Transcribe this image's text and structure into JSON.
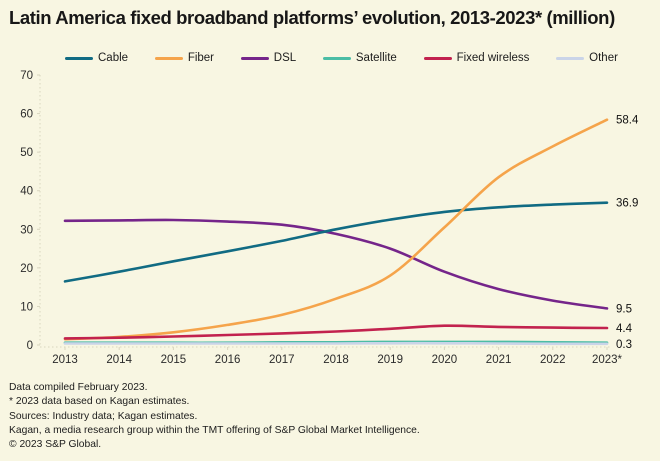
{
  "title": "Latin America fixed broadband platforms’ evolution, 2013-2023* (million)",
  "colors": {
    "background": "#f8f6e2",
    "text": "#1a1a1a",
    "axis": "#d8d5bf",
    "tick_label": "#2b2b2b",
    "end_label": "#111111"
  },
  "chart_data": {
    "type": "line",
    "title": "Latin America fixed broadband platforms’ evolution, 2013-2023* (million)",
    "x_labels": [
      "2013",
      "2014",
      "2015",
      "2016",
      "2017",
      "2018",
      "2019",
      "2020",
      "2021",
      "2022",
      "2023*"
    ],
    "ylim": [
      0,
      70
    ],
    "yticks": [
      0,
      10,
      20,
      30,
      40,
      50,
      60,
      70
    ],
    "grid": false,
    "legend_position": "top",
    "series": [
      {
        "name": "Cable",
        "color": "#116b83",
        "end_label": "36.9",
        "values": [
          16.5,
          19.0,
          21.7,
          24.3,
          27.0,
          30.0,
          32.5,
          34.5,
          35.7,
          36.4,
          36.9
        ]
      },
      {
        "name": "Fiber",
        "color": "#f5a44b",
        "end_label": "58.4",
        "values": [
          1.5,
          2.1,
          3.3,
          5.2,
          7.8,
          12.0,
          18.0,
          30.5,
          43.5,
          51.5,
          58.4
        ]
      },
      {
        "name": "DSL",
        "color": "#75258a",
        "end_label": "9.5",
        "values": [
          32.2,
          32.3,
          32.4,
          32.0,
          31.2,
          28.8,
          25.0,
          19.0,
          14.5,
          11.5,
          9.5
        ]
      },
      {
        "name": "Satellite",
        "color": "#4bbda5",
        "end_label": null,
        "values": [
          0.6,
          0.6,
          0.6,
          0.6,
          0.7,
          0.7,
          0.8,
          0.8,
          0.8,
          0.7,
          0.6
        ]
      },
      {
        "name": "Fixed wireless",
        "color": "#c2224e",
        "end_label": "4.4",
        "values": [
          1.7,
          1.9,
          2.2,
          2.6,
          3.0,
          3.5,
          4.2,
          5.0,
          4.7,
          4.5,
          4.4
        ]
      },
      {
        "name": "Other",
        "color": "#cad4e8",
        "end_label": "0.3",
        "values": [
          0.4,
          0.4,
          0.4,
          0.4,
          0.4,
          0.4,
          0.45,
          0.45,
          0.4,
          0.3,
          0.3
        ]
      }
    ]
  },
  "footer": {
    "lines": [
      "Data compiled February 2023.",
      "* 2023 data based on Kagan estimates.",
      "Sources: Industry data; Kagan estimates.",
      "Kagan, a media research group within the TMT offering of S&P Global Market Intelligence.",
      "© 2023 S&P Global."
    ]
  }
}
